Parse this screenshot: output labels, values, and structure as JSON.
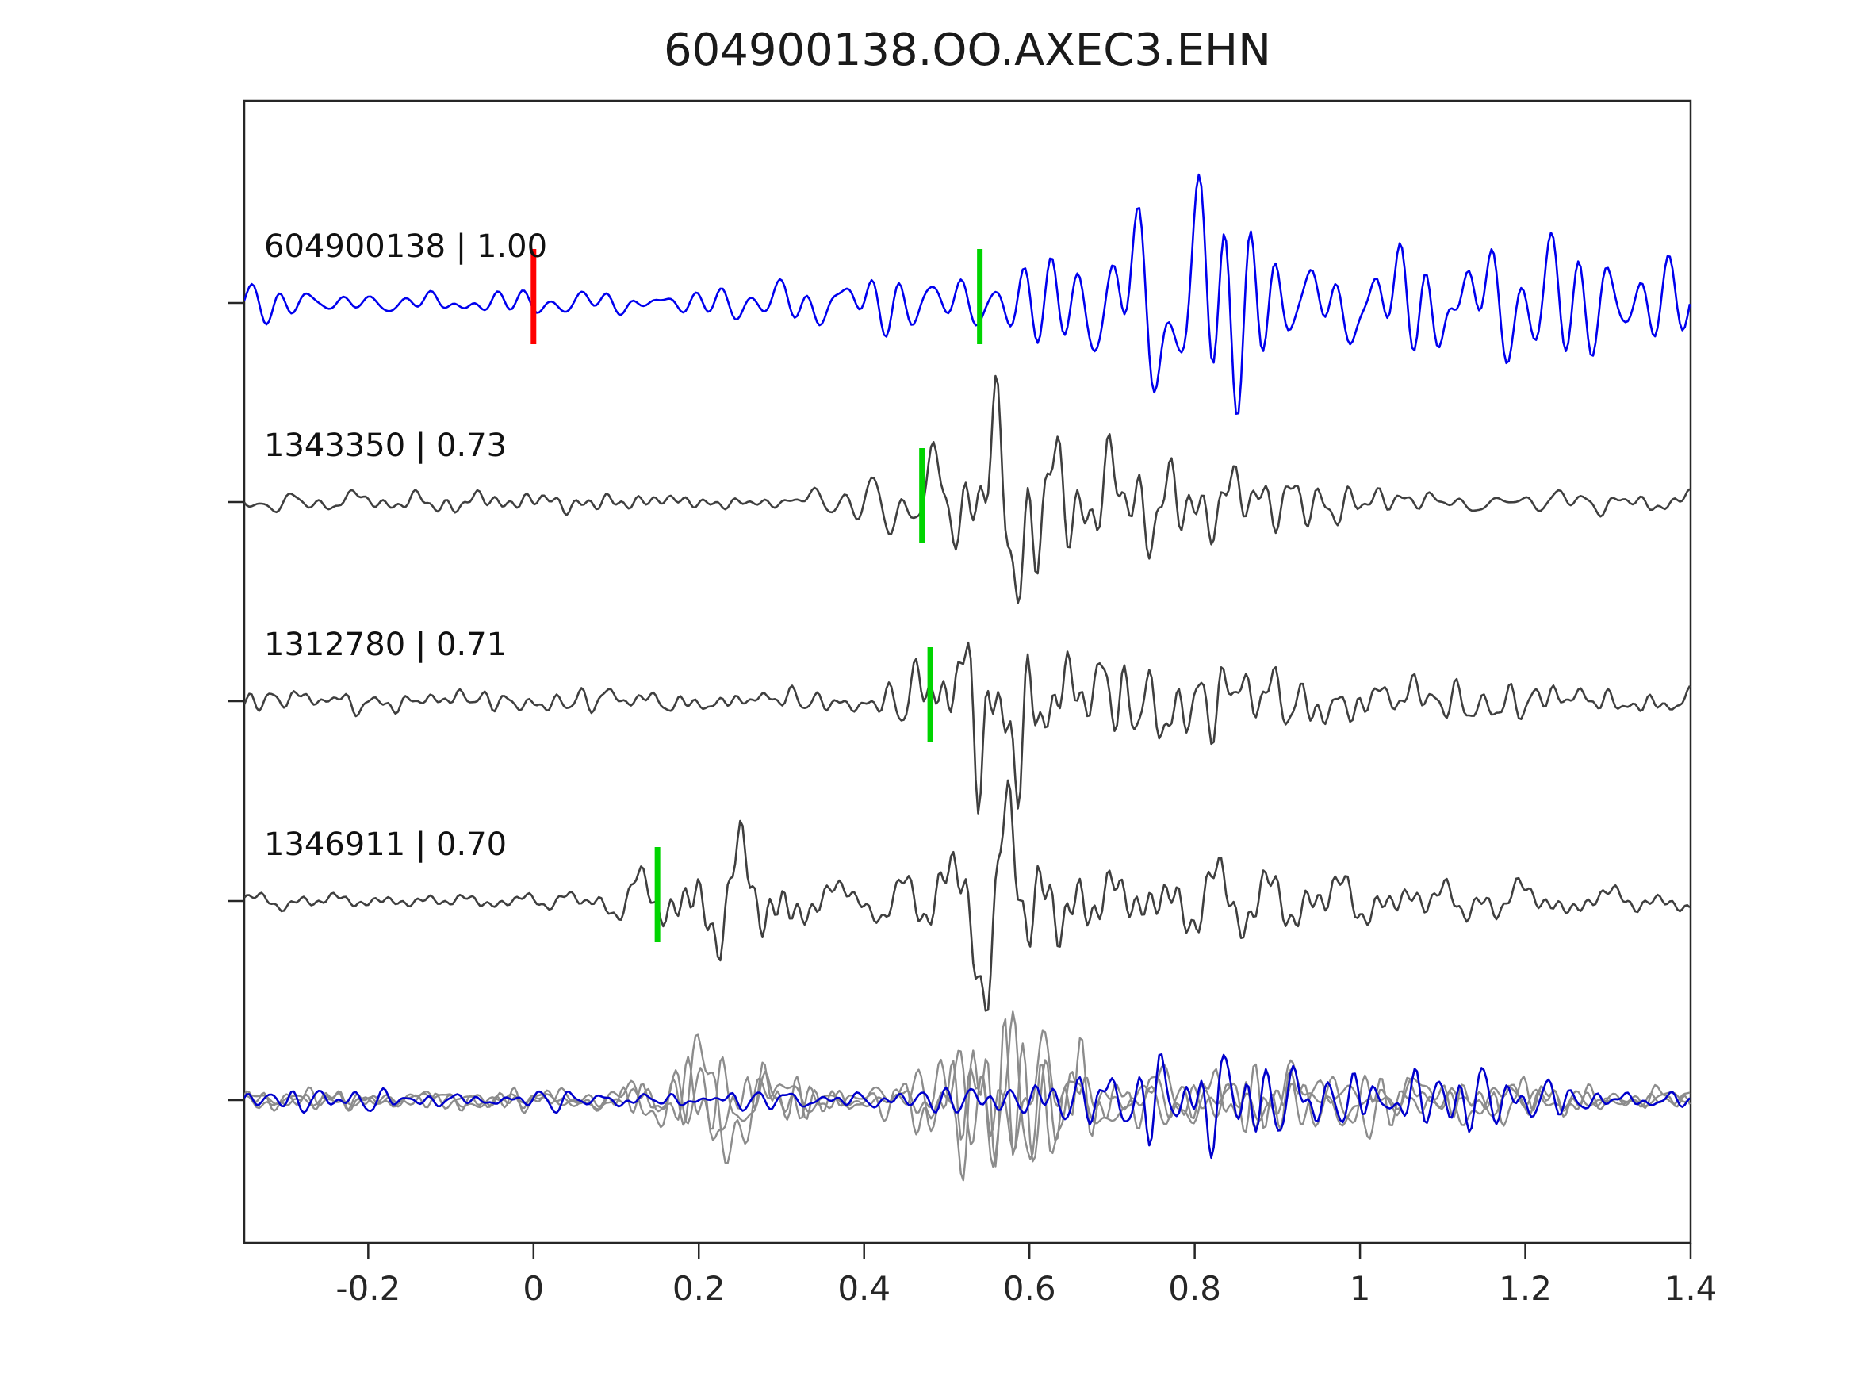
{
  "chart_data": {
    "type": "line",
    "title": "604900138.OO.AXEC3.EHN",
    "xlabel": "",
    "ylabel": "",
    "xlim": [
      -0.35,
      1.4
    ],
    "xticks": [
      -0.2,
      0,
      0.2,
      0.4,
      0.6,
      0.8,
      1,
      1.2,
      1.4
    ],
    "xtick_labels": [
      "-0.2",
      "0",
      "0.2",
      "0.4",
      "0.6",
      "0.8",
      "1",
      "1.2",
      "1.4"
    ],
    "grid": false,
    "legend": "none",
    "colors": {
      "template_trace": "#0000ee",
      "detection_trace": "#3f3f3f",
      "overlay_gray": "#8c8c8c",
      "overlay_blue": "#0000cc",
      "pick_green": "#00d400",
      "pick_red": "#ff0000",
      "axis": "#262626"
    },
    "traces": [
      {
        "name": "604900138",
        "label": "604900138 | 1.00",
        "id": "604900138",
        "correlation": 1.0,
        "color": "#0000ee",
        "row": 0,
        "picks": [
          {
            "color": "#ff0000",
            "x": 0.0,
            "kind": "reference-pick"
          },
          {
            "color": "#00d400",
            "x": 0.54,
            "kind": "phase-pick"
          }
        ],
        "signal_envelope": {
          "noise_amp": 10,
          "bursts": [
            {
              "center": 0.5,
              "width": 0.1,
              "amp": 20
            },
            {
              "center": 0.78,
              "width": 0.07,
              "amp": 58
            },
            {
              "center": 0.95,
              "width": 0.12,
              "amp": 30
            },
            {
              "center": 1.15,
              "width": 0.2,
              "amp": 26
            }
          ]
        }
      },
      {
        "name": "1343350",
        "label": "1343350 | 0.73",
        "id": "1343350",
        "correlation": 0.73,
        "color": "#3f3f3f",
        "row": 1,
        "picks": [
          {
            "color": "#00d400",
            "x": 0.47,
            "kind": "phase-pick"
          }
        ],
        "signal_envelope": {
          "noise_amp": 9,
          "bursts": [
            {
              "center": 0.42,
              "width": 0.05,
              "amp": 14
            },
            {
              "center": 0.56,
              "width": 0.055,
              "amp": 78
            },
            {
              "center": 0.72,
              "width": 0.1,
              "amp": 24
            },
            {
              "center": 0.95,
              "width": 0.15,
              "amp": 10
            }
          ]
        }
      },
      {
        "name": "1312780",
        "label": "1312780 | 0.71",
        "id": "1312780",
        "correlation": 0.71,
        "color": "#3f3f3f",
        "row": 2,
        "picks": [
          {
            "color": "#00d400",
            "x": 0.48,
            "kind": "phase-pick"
          }
        ],
        "signal_envelope": {
          "noise_amp": 9,
          "bursts": [
            {
              "center": 0.56,
              "width": 0.055,
              "amp": 72
            },
            {
              "center": 0.75,
              "width": 0.12,
              "amp": 20
            },
            {
              "center": 1.0,
              "width": 0.2,
              "amp": 9
            }
          ]
        }
      },
      {
        "name": "1346911",
        "label": "1346911 | 0.70",
        "id": "1346911",
        "correlation": 0.7,
        "color": "#3f3f3f",
        "row": 3,
        "picks": [
          {
            "color": "#00d400",
            "x": 0.15,
            "kind": "phase-pick"
          }
        ],
        "signal_envelope": {
          "noise_amp": 9,
          "bursts": [
            {
              "center": 0.24,
              "width": 0.07,
              "amp": 48
            },
            {
              "center": 0.57,
              "width": 0.07,
              "amp": 62
            },
            {
              "center": 0.8,
              "width": 0.12,
              "amp": 26
            },
            {
              "center": 1.05,
              "width": 0.2,
              "amp": 12
            }
          ]
        }
      }
    ],
    "overlay_traces": [
      {
        "name": "overlay-gray-1",
        "color": "#8c8c8c",
        "row": 4,
        "signal_envelope": {
          "noise_amp": 8,
          "bursts": [
            {
              "center": 0.22,
              "width": 0.06,
              "amp": 38
            },
            {
              "center": 0.56,
              "width": 0.06,
              "amp": 58
            },
            {
              "center": 0.9,
              "width": 0.2,
              "amp": 15
            }
          ]
        }
      },
      {
        "name": "overlay-gray-2",
        "color": "#8c8c8c",
        "row": 4,
        "signal_envelope": {
          "noise_amp": 8,
          "bursts": [
            {
              "center": 0.22,
              "width": 0.06,
              "amp": 30
            },
            {
              "center": 0.56,
              "width": 0.06,
              "amp": 55
            },
            {
              "center": 0.95,
              "width": 0.2,
              "amp": 14
            }
          ]
        }
      },
      {
        "name": "overlay-gray-3",
        "color": "#8c8c8c",
        "row": 4,
        "signal_envelope": {
          "noise_amp": 8,
          "bursts": [
            {
              "center": 0.23,
              "width": 0.06,
              "amp": 26
            },
            {
              "center": 0.57,
              "width": 0.06,
              "amp": 60
            },
            {
              "center": 0.88,
              "width": 0.18,
              "amp": 16
            }
          ]
        }
      },
      {
        "name": "overlay-blue",
        "color": "#0000cc",
        "row": 4,
        "signal_envelope": {
          "noise_amp": 10,
          "bursts": [
            {
              "center": 0.78,
              "width": 0.08,
              "amp": 42
            },
            {
              "center": 1.05,
              "width": 0.15,
              "amp": 18
            }
          ]
        }
      }
    ]
  }
}
